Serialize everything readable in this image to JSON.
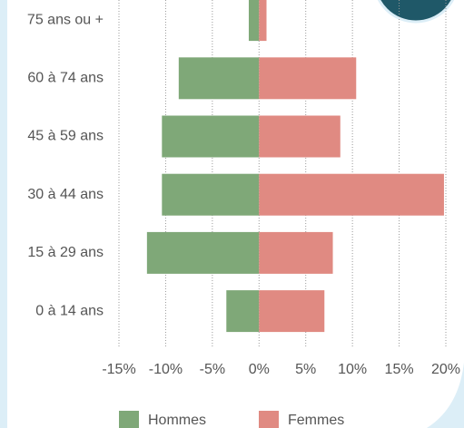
{
  "chart_data": {
    "type": "bar",
    "categories": [
      "75 ans ou +",
      "60 à 74 ans",
      "45 à 59 ans",
      "30 à 44 ans",
      "15 à 29 ans",
      "0 à 14 ans"
    ],
    "series": [
      {
        "name": "Hommes",
        "color": "#7fa878",
        "values": [
          -1.1,
          -8.6,
          -10.4,
          -10.4,
          -12.0,
          -3.5
        ]
      },
      {
        "name": "Femmes",
        "color": "#e08a82",
        "values": [
          0.8,
          10.4,
          8.7,
          19.8,
          7.9,
          7.0
        ]
      }
    ],
    "xlim": [
      -15,
      20
    ],
    "xticks": [
      {
        "value": -15,
        "label": "-15%"
      },
      {
        "value": -10,
        "label": "-10%"
      },
      {
        "value": -5,
        "label": "-5%"
      },
      {
        "value": 0,
        "label": "0%"
      },
      {
        "value": 5,
        "label": "5%"
      },
      {
        "value": 10,
        "label": "10%"
      },
      {
        "value": 15,
        "label": "15%"
      },
      {
        "value": 20,
        "label": "20%"
      }
    ],
    "grid": true
  }
}
